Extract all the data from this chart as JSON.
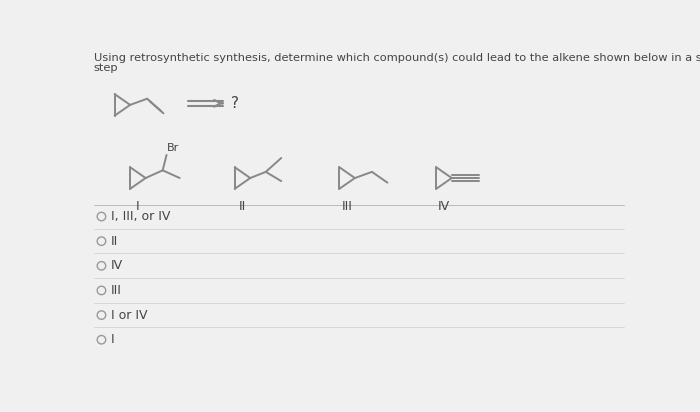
{
  "title_line1": "Using retrosynthetic synthesis, determine which compound(s) could lead to the alkene shown below in a single",
  "title_line2": "step",
  "background_color": "#f0f0f0",
  "text_color": "#444444",
  "bond_color": "#888888",
  "answer_options": [
    "I, III, or IV",
    "II",
    "IV",
    "III",
    "I or IV",
    "I"
  ],
  "br_label": "Br",
  "question_label": "?"
}
